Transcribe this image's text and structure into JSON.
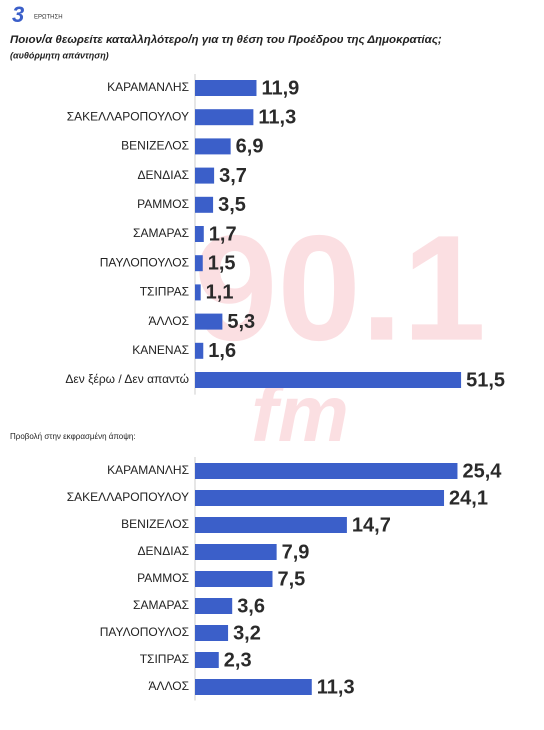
{
  "header": {
    "logo": "3",
    "label": "ΕΡΩΤΗΣΗ"
  },
  "watermark": {
    "number": "90.1",
    "unit": "fm"
  },
  "chart_data": [
    {
      "type": "bar",
      "orientation": "horizontal",
      "title": "Ποιον/α  θεωρείτε καταλληλότερο/η  για τη θέση του Προέδρου της Δημοκρατίας;",
      "subtitle": "(αυθόρμητη απάντηση)",
      "categories": [
        "ΚΑΡΑΜΑΝΛΗΣ",
        "ΣΑΚΕΛΛΑΡΟΠΟΥΛΟΥ",
        "ΒΕΝΙΖΕΛΟΣ",
        "ΔΕΝΔΙΑΣ",
        "ΡΑΜΜΟΣ",
        "ΣΑΜΑΡΑΣ",
        "ΠΑΥΛΟΠΟΥΛΟΣ",
        "ΤΣΙΠΡΑΣ",
        "ΆΛΛΟΣ",
        "ΚΑΝΕΝΑΣ",
        "Δεν ξέρω / Δεν απαντώ"
      ],
      "values": [
        11.9,
        11.3,
        6.9,
        3.7,
        3.5,
        1.7,
        1.5,
        1.1,
        5.3,
        1.6,
        51.5
      ],
      "value_labels": [
        "11,9",
        "11,3",
        "6,9",
        "3,7",
        "3,5",
        "1,7",
        "1,5",
        "1,1",
        "5,3",
        "1,6",
        "51,5"
      ],
      "color": "#3b5fc9",
      "xlim": [
        0,
        60
      ]
    },
    {
      "type": "bar",
      "orientation": "horizontal",
      "title": "Προβολή στην εκφρασμένη άποψη:",
      "categories": [
        "ΚΑΡΑΜΑΝΛΗΣ",
        "ΣΑΚΕΛΛΑΡΟΠΟΥΛΟΥ",
        "ΒΕΝΙΖΕΛΟΣ",
        "ΔΕΝΔΙΑΣ",
        "ΡΑΜΜΟΣ",
        "ΣΑΜΑΡΑΣ",
        "ΠΑΥΛΟΠΟΥΛΟΣ",
        "ΤΣΙΠΡΑΣ",
        "ΆΛΛΟΣ"
      ],
      "values": [
        25.4,
        24.1,
        14.7,
        7.9,
        7.5,
        3.6,
        3.2,
        2.3,
        11.3
      ],
      "value_labels": [
        "25,4",
        "24,1",
        "14,7",
        "7,9",
        "7,5",
        "3,6",
        "3,2",
        "2,3",
        "11,3"
      ],
      "color": "#3b5fc9",
      "xlim": [
        0,
        30
      ]
    }
  ]
}
